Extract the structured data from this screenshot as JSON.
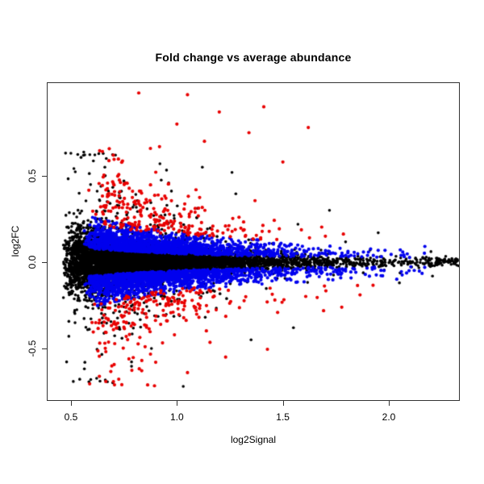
{
  "chart_data": {
    "type": "scatter",
    "title": "Fold change vs average abundance",
    "xlabel": "log2Signal",
    "ylabel": "log2FC",
    "xlim": [
      0.386,
      2.335
    ],
    "ylim": [
      -0.804,
      1.042
    ],
    "grid": false,
    "legend": null,
    "background": "#ffffff",
    "xticks": {
      "values": [
        0.5,
        1.0,
        1.5,
        2.0
      ],
      "labels": [
        "0.5",
        "1.0",
        "1.5",
        "2.0"
      ]
    },
    "yticks": {
      "values": [
        -0.5,
        0.0,
        0.5
      ],
      "labels": [
        "-0.5",
        "0.0",
        "0.5"
      ]
    },
    "series": [
      {
        "name": "black-points",
        "color": "#000000",
        "radius": 1.8,
        "n": 7000,
        "seed": 101,
        "x_gen": {
          "shift": 0.46,
          "theta": 0.2,
          "theta2": 0.42,
          "p2": 0.12,
          "fold": 1.87,
          "foldTheta": 0.12
        },
        "y_gen": {
          "mode": "center",
          "sigma0": 0.012,
          "sigma1": 0.105,
          "decay": 0.4,
          "tail1p": 0.1,
          "tail1m": 3.2,
          "tail2p": 0.015,
          "tail2m": 6.5,
          "clampLo": -0.7,
          "clampHi": 0.64
        },
        "outliers": [
          [
            1.03,
            -0.72
          ],
          [
            0.88,
            -0.5
          ],
          [
            1.35,
            -0.45
          ],
          [
            1.55,
            -0.38
          ],
          [
            0.71,
            0.62
          ],
          [
            0.66,
            0.55
          ],
          [
            0.92,
            0.57
          ],
          [
            1.26,
            0.52
          ],
          [
            0.75,
            0.47
          ],
          [
            1.12,
            0.55
          ],
          [
            1.72,
            0.3
          ],
          [
            1.95,
            0.17
          ],
          [
            2.05,
            -0.12
          ]
        ]
      },
      {
        "name": "blue-points",
        "color": "#0000ee",
        "radius": 2.1,
        "n": 3000,
        "seed": 202,
        "x_gen": {
          "shift": 0.56,
          "theta": 0.21,
          "theta2": 0.21,
          "p2": 0.0,
          "fold": 1.62,
          "foldTheta": 0.1
        },
        "y_gen": {
          "mode": "band",
          "l0": 0.022,
          "l1": 0.06,
          "w0": 0.028,
          "w1": 0.055,
          "decay": 0.55,
          "maxZ": 2.3,
          "pUp": 0.5,
          "clampLo": -0.3,
          "clampHi": 0.3
        },
        "outliers": []
      },
      {
        "name": "red-points",
        "color": "#e80000",
        "radius": 2.1,
        "n": 470,
        "seed": 303,
        "x_gen": {
          "shift": 0.58,
          "theta": 0.17,
          "theta2": 0.17,
          "p2": 0.0,
          "fold": 1.35,
          "foldTheta": 0.1
        },
        "y_gen": {
          "mode": "band",
          "l0": 0.1,
          "l1": 0.13,
          "w0": 0.05,
          "w1": 0.16,
          "decay": 0.5,
          "maxZ": 4.8,
          "pUp": 0.52,
          "tailP": 0.1,
          "tailM": 2.3,
          "clampLo": -0.72,
          "clampHi": 0.97
        },
        "outliers": [
          [
            0.82,
            0.98
          ],
          [
            1.05,
            0.97
          ],
          [
            1.41,
            0.9
          ],
          [
            1.2,
            0.87
          ],
          [
            1.0,
            0.8
          ],
          [
            1.62,
            0.78
          ],
          [
            1.34,
            0.75
          ],
          [
            1.13,
            0.7
          ],
          [
            0.7,
            0.62
          ],
          [
            1.5,
            0.58
          ],
          [
            0.74,
            -0.71
          ],
          [
            1.05,
            -0.64
          ],
          [
            0.9,
            -0.58
          ],
          [
            1.23,
            -0.55
          ],
          [
            0.85,
            -0.49
          ]
        ]
      }
    ]
  }
}
